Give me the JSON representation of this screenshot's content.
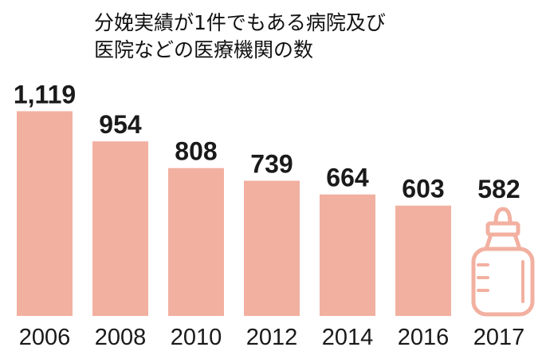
{
  "chart_data": {
    "type": "bar",
    "title": "分娩実績が1件でもある病院及び\n医院などの医療機関の数",
    "categories": [
      "2006",
      "2008",
      "2010",
      "2012",
      "2014",
      "2016",
      "2017"
    ],
    "values": [
      1119,
      954,
      808,
      739,
      664,
      603,
      582
    ],
    "value_labels": [
      "1,119",
      "954",
      "808",
      "739",
      "664",
      "603",
      "582"
    ],
    "xlabel": "",
    "ylabel": "",
    "ylim": [
      0,
      1160
    ],
    "grid": false,
    "legend": "none",
    "bar_color": "#f2b0a0",
    "last_category_icon": "baby-bottle-icon"
  }
}
